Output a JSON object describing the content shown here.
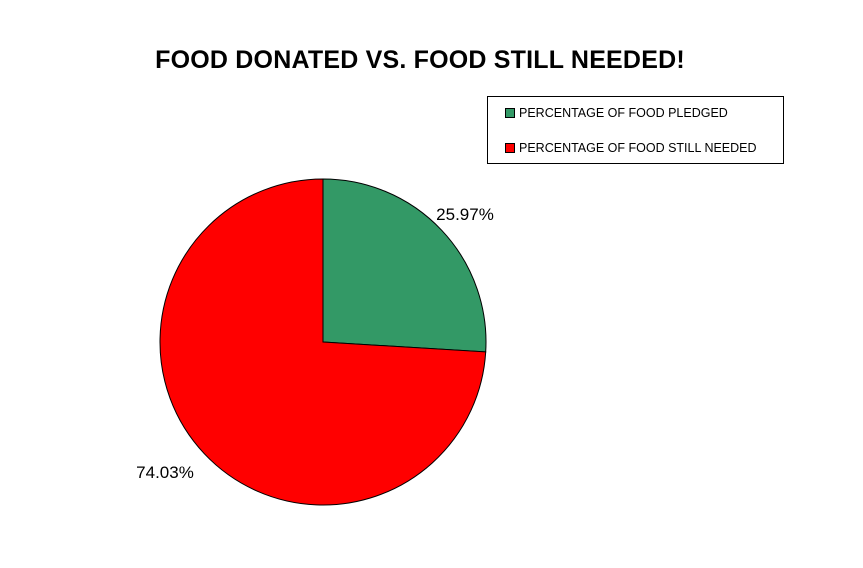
{
  "chart_data": {
    "type": "pie",
    "title": "FOOD DONATED VS. FOOD STILL NEEDED!",
    "legend_position": "top-right",
    "slices": [
      {
        "label": "PERCENTAGE OF FOOD PLEDGED",
        "value": 25.97,
        "value_label": "25.97%",
        "color": "#339966"
      },
      {
        "label": "PERCENTAGE OF FOOD STILL NEEDED",
        "value": 74.03,
        "value_label": "74.03%",
        "color": "#ff0000"
      }
    ]
  }
}
